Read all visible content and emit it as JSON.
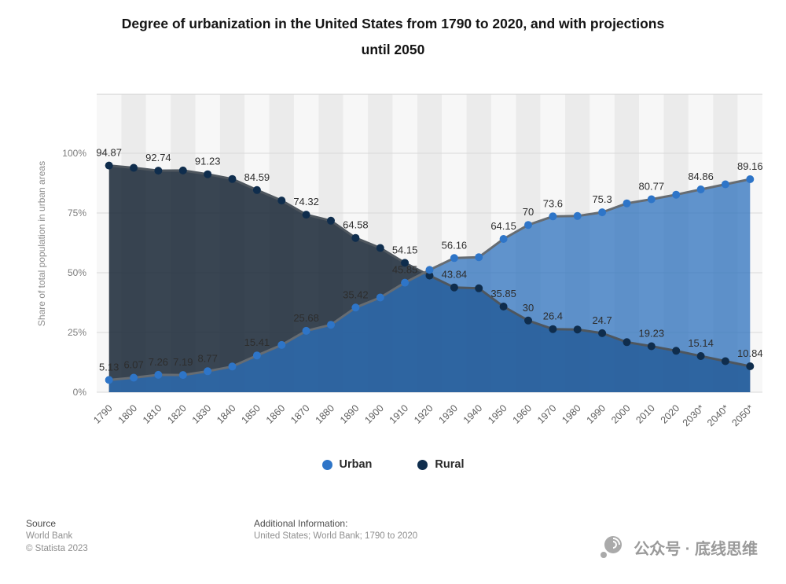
{
  "title": {
    "line1": "Degree of urbanization in the United States from 1790 to 2020, and with projections",
    "line2": "until 2050"
  },
  "chart_data": {
    "type": "area",
    "title": "Degree of urbanization in the United States from 1790 to 2020, and with projections until 2050",
    "ylabel": "Share of total population in urban areas",
    "xlabel": "",
    "ylim": [
      0,
      100
    ],
    "yticks": [
      "0%",
      "25%",
      "50%",
      "75%",
      "100%"
    ],
    "grid": true,
    "legend_position": "bottom",
    "categories": [
      "1790",
      "1800",
      "1810",
      "1820",
      "1830",
      "1840",
      "1850",
      "1860",
      "1870",
      "1880",
      "1890",
      "1900",
      "1910",
      "1920",
      "1930",
      "1940",
      "1950",
      "1960",
      "1970",
      "1980",
      "1990",
      "2000",
      "2010",
      "2020",
      "2030*",
      "2040*",
      "2050*"
    ],
    "series": [
      {
        "name": "Urban",
        "dot_color": "#2e75c8",
        "line_color": "#666c72",
        "fill_color": "rgba(43,112,189,0.74)",
        "values": [
          5.13,
          6.07,
          7.26,
          7.19,
          8.77,
          10.76,
          15.41,
          19.77,
          25.68,
          28.21,
          35.42,
          39.63,
          45.85,
          51.17,
          56.16,
          56.52,
          64.15,
          70,
          73.6,
          73.74,
          75.3,
          79.06,
          80.77,
          82.66,
          84.86,
          87.01,
          89.16
        ],
        "labels": [
          "5.13",
          "6.07",
          "7.26",
          "7.19",
          "8.77",
          null,
          "15.41",
          null,
          "25.68",
          null,
          "35.42",
          null,
          "45.85",
          null,
          "56.16",
          null,
          "64.15",
          "70",
          "73.6",
          null,
          "75.3",
          null,
          "80.77",
          null,
          "84.86",
          null,
          "89.16"
        ]
      },
      {
        "name": "Rural",
        "dot_color": "#0f2d4d",
        "line_color": "#4e565e",
        "fill_color": "rgba(35,49,63,0.9)",
        "values": [
          94.87,
          93.93,
          92.74,
          92.81,
          91.23,
          89.24,
          84.59,
          80.23,
          74.32,
          71.79,
          64.58,
          60.37,
          54.15,
          48.83,
          43.84,
          43.48,
          35.85,
          30,
          26.4,
          26.26,
          24.7,
          20.94,
          19.23,
          17.34,
          15.14,
          12.99,
          10.84
        ],
        "labels": [
          "94.87",
          null,
          "92.74",
          null,
          "91.23",
          null,
          "84.59",
          null,
          "74.32",
          null,
          "64.58",
          null,
          "54.15",
          null,
          "43.84",
          null,
          "35.85",
          "30",
          "26.4",
          null,
          "24.7",
          null,
          "19.23",
          null,
          "15.14",
          null,
          "10.84"
        ]
      }
    ]
  },
  "legend": [
    {
      "label": "Urban",
      "color": "#2e75c8"
    },
    {
      "label": "Rural",
      "color": "#0f2d4d"
    }
  ],
  "footer": {
    "source_label": "Source",
    "source_name": "World Bank",
    "copyright": "© Statista 2023",
    "additional_label": "Additional Information:",
    "additional_text": "United States; World Bank; 1790 to 2020",
    "watermark": "公众号 · 底线思维"
  },
  "colors": {
    "stripe_light": "#f7f7f7",
    "stripe_dark": "#ebebeb",
    "gridline": "#d8d8d8",
    "axis_text": "#7d7d7d",
    "label_text": "#2d2d2d"
  }
}
